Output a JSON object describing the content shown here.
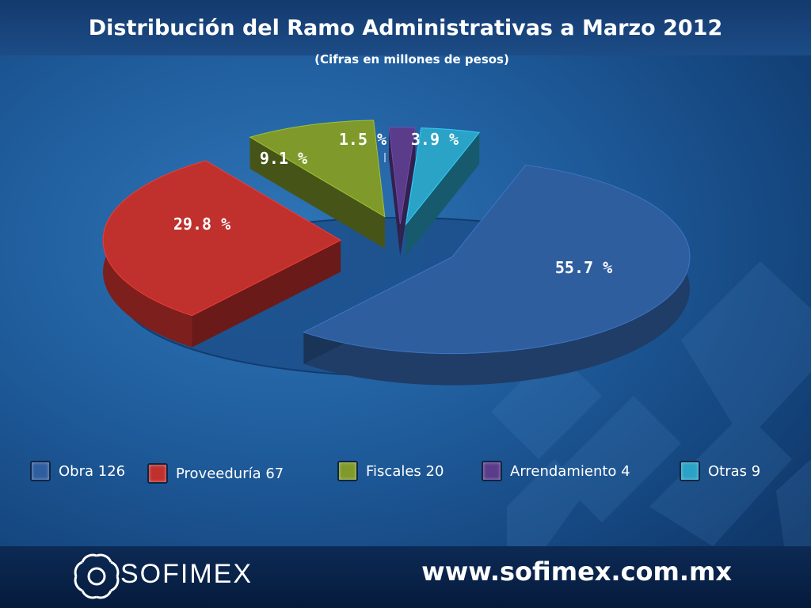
{
  "slide": {
    "title": "Distribución del Ramo Administrativas  a Marzo 2012",
    "subtitle": "(Cifras en millones de pesos)"
  },
  "chart_data": {
    "type": "pie",
    "title": "Distribución del Ramo Administrativas  a Marzo 2012",
    "subtitle": "(Cifras en millones de pesos)",
    "categories": [
      "Obra",
      "Proveeduría",
      "Fiscales",
      "Arrendamiento",
      "Otras"
    ],
    "values": [
      126,
      67,
      20,
      4,
      9
    ],
    "percent_labels": [
      "55.7 %",
      "29.8 %",
      "9.1 %",
      "1.5 %",
      "3.9 %"
    ],
    "colors": [
      "#2f5e9e",
      "#c0302c",
      "#7f9a2a",
      "#5a3c8a",
      "#2aa3c6"
    ],
    "legend_position": "bottom",
    "legend": [
      {
        "label": "Obra  126",
        "color": "#2f5e9e"
      },
      {
        "label": "Proveeduría  67",
        "color": "#c0302c"
      },
      {
        "label": "Fiscales  20",
        "color": "#7f9a2a"
      },
      {
        "label": "Arrendamiento  4",
        "color": "#5a3c8a"
      },
      {
        "label": "Otras 9",
        "color": "#2aa3c6"
      }
    ]
  },
  "footer": {
    "brand": "SOFIMEX",
    "url": "www.sofimex.com.mx"
  }
}
